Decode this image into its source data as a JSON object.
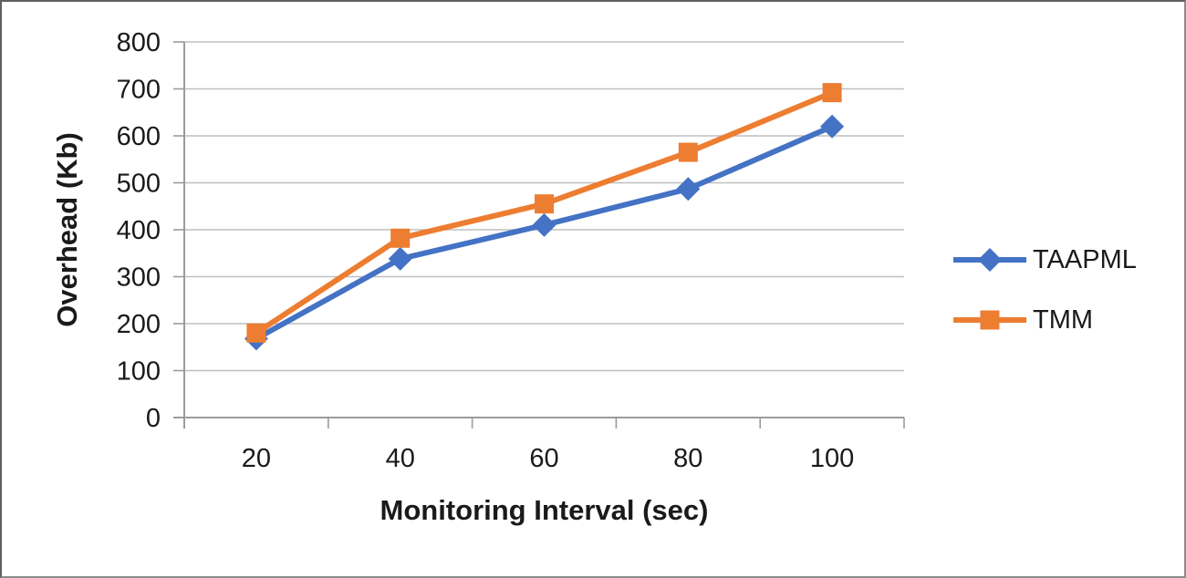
{
  "chart_data": {
    "type": "line",
    "xlabel": "Monitoring Interval (sec)",
    "ylabel": "Overhead (Kb)",
    "categories": [
      "20",
      "40",
      "60",
      "80",
      "100"
    ],
    "series": [
      {
        "name": "TAAPML",
        "color": "#4472C4",
        "marker": "diamond",
        "values": [
          168,
          338,
          410,
          487,
          620
        ]
      },
      {
        "name": "TMM",
        "color": "#ED7D31",
        "marker": "square",
        "values": [
          180,
          382,
          455,
          565,
          692
        ]
      }
    ],
    "ylim": [
      0,
      800
    ],
    "ytick_step": 100,
    "grid": true,
    "legend_position": "right",
    "grid_color": "#BFBFBF",
    "axis_color": "#9B9B9B",
    "text_color": "#1a1a1a"
  }
}
